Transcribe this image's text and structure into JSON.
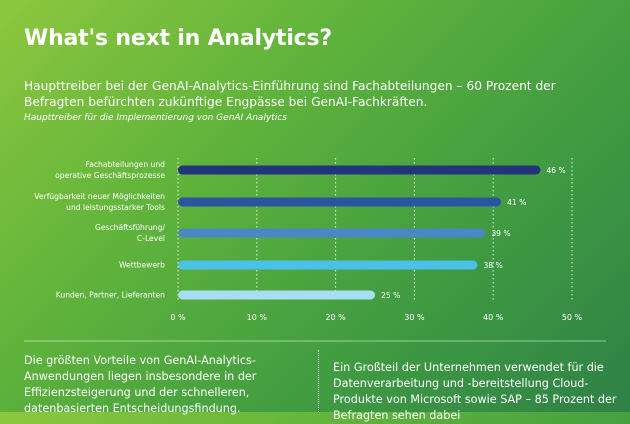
{
  "header": {
    "title": "What's next in Analytics?",
    "subtitle": "Haupttreiber bei der GenAI-Analytics-Einführung sind Fachabteilungen – 60 Prozent der Befragten befürchten zukünftige Engpässe bei GenAI-Fachkräften.",
    "chart_caption": "Haupttreiber für die Implementierung von GenAI Analytics"
  },
  "chart_data": {
    "type": "bar",
    "orientation": "horizontal",
    "categories": [
      [
        "Fachabteilungen und",
        "operative Geschäftsprozesse"
      ],
      [
        "Verfügbarkeit neuer Möglichkeiten",
        "und leistungsstarker Tools"
      ],
      [
        "Geschäftsführung/",
        "C-Level"
      ],
      [
        "Wettbewerb"
      ],
      [
        "Kunden, Partner, Lieferanten"
      ]
    ],
    "values": [
      46,
      41,
      39,
      38,
      25
    ],
    "value_labels": [
      "46 %",
      "41 %",
      "39 %",
      "38 %",
      "25 %"
    ],
    "bar_colors": [
      "#22357a",
      "#2a56a0",
      "#4b86c5",
      "#4cc1e8",
      "#a7def3"
    ],
    "xlim": [
      0,
      50
    ],
    "xticks": [
      0,
      10,
      20,
      30,
      40,
      50
    ],
    "xtick_labels": [
      "0 %",
      "10 %",
      "20 %",
      "30 %",
      "40 %",
      "50 %"
    ],
    "grid": true
  },
  "footer": {
    "left_text": "Die größten Vorteile von GenAI-Analytics-Anwendungen liegen insbesondere in der Effizienzsteigerung und der schnelleren, datenbasierten Entscheidungsfindung.",
    "right_text": "Ein Großteil der Unternehmen verwendet für die Datenverarbeitung und -bereitstellung Cloud-Produkte von Microsoft sowie SAP – 85 Prozent der Befragten sehen dabei"
  }
}
